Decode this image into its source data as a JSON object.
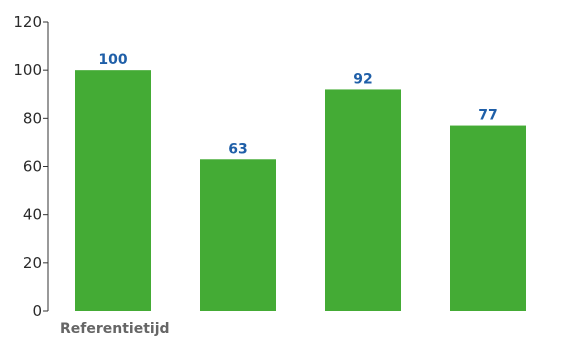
{
  "chart_data": {
    "type": "bar",
    "title": "",
    "xlabel": "Referentietijd",
    "ylabel": "",
    "categories": [
      "",
      "",
      "",
      ""
    ],
    "values": [
      100,
      63,
      92,
      77
    ],
    "data_labels": [
      "100",
      "63",
      "92",
      "77"
    ],
    "ylim": [
      0,
      120
    ],
    "yticks": [
      0,
      20,
      40,
      60,
      80,
      100,
      120
    ],
    "ytick_labels": [
      "0",
      "20",
      "40",
      "60",
      "80",
      "100",
      "120"
    ],
    "grid": false,
    "legend": "none",
    "colors": {
      "bar": "#44ab35",
      "data_label": "#1f5fa8",
      "axis": "#333333",
      "tick_text": "#2b2b2b",
      "xlabel_text": "#666666"
    }
  }
}
